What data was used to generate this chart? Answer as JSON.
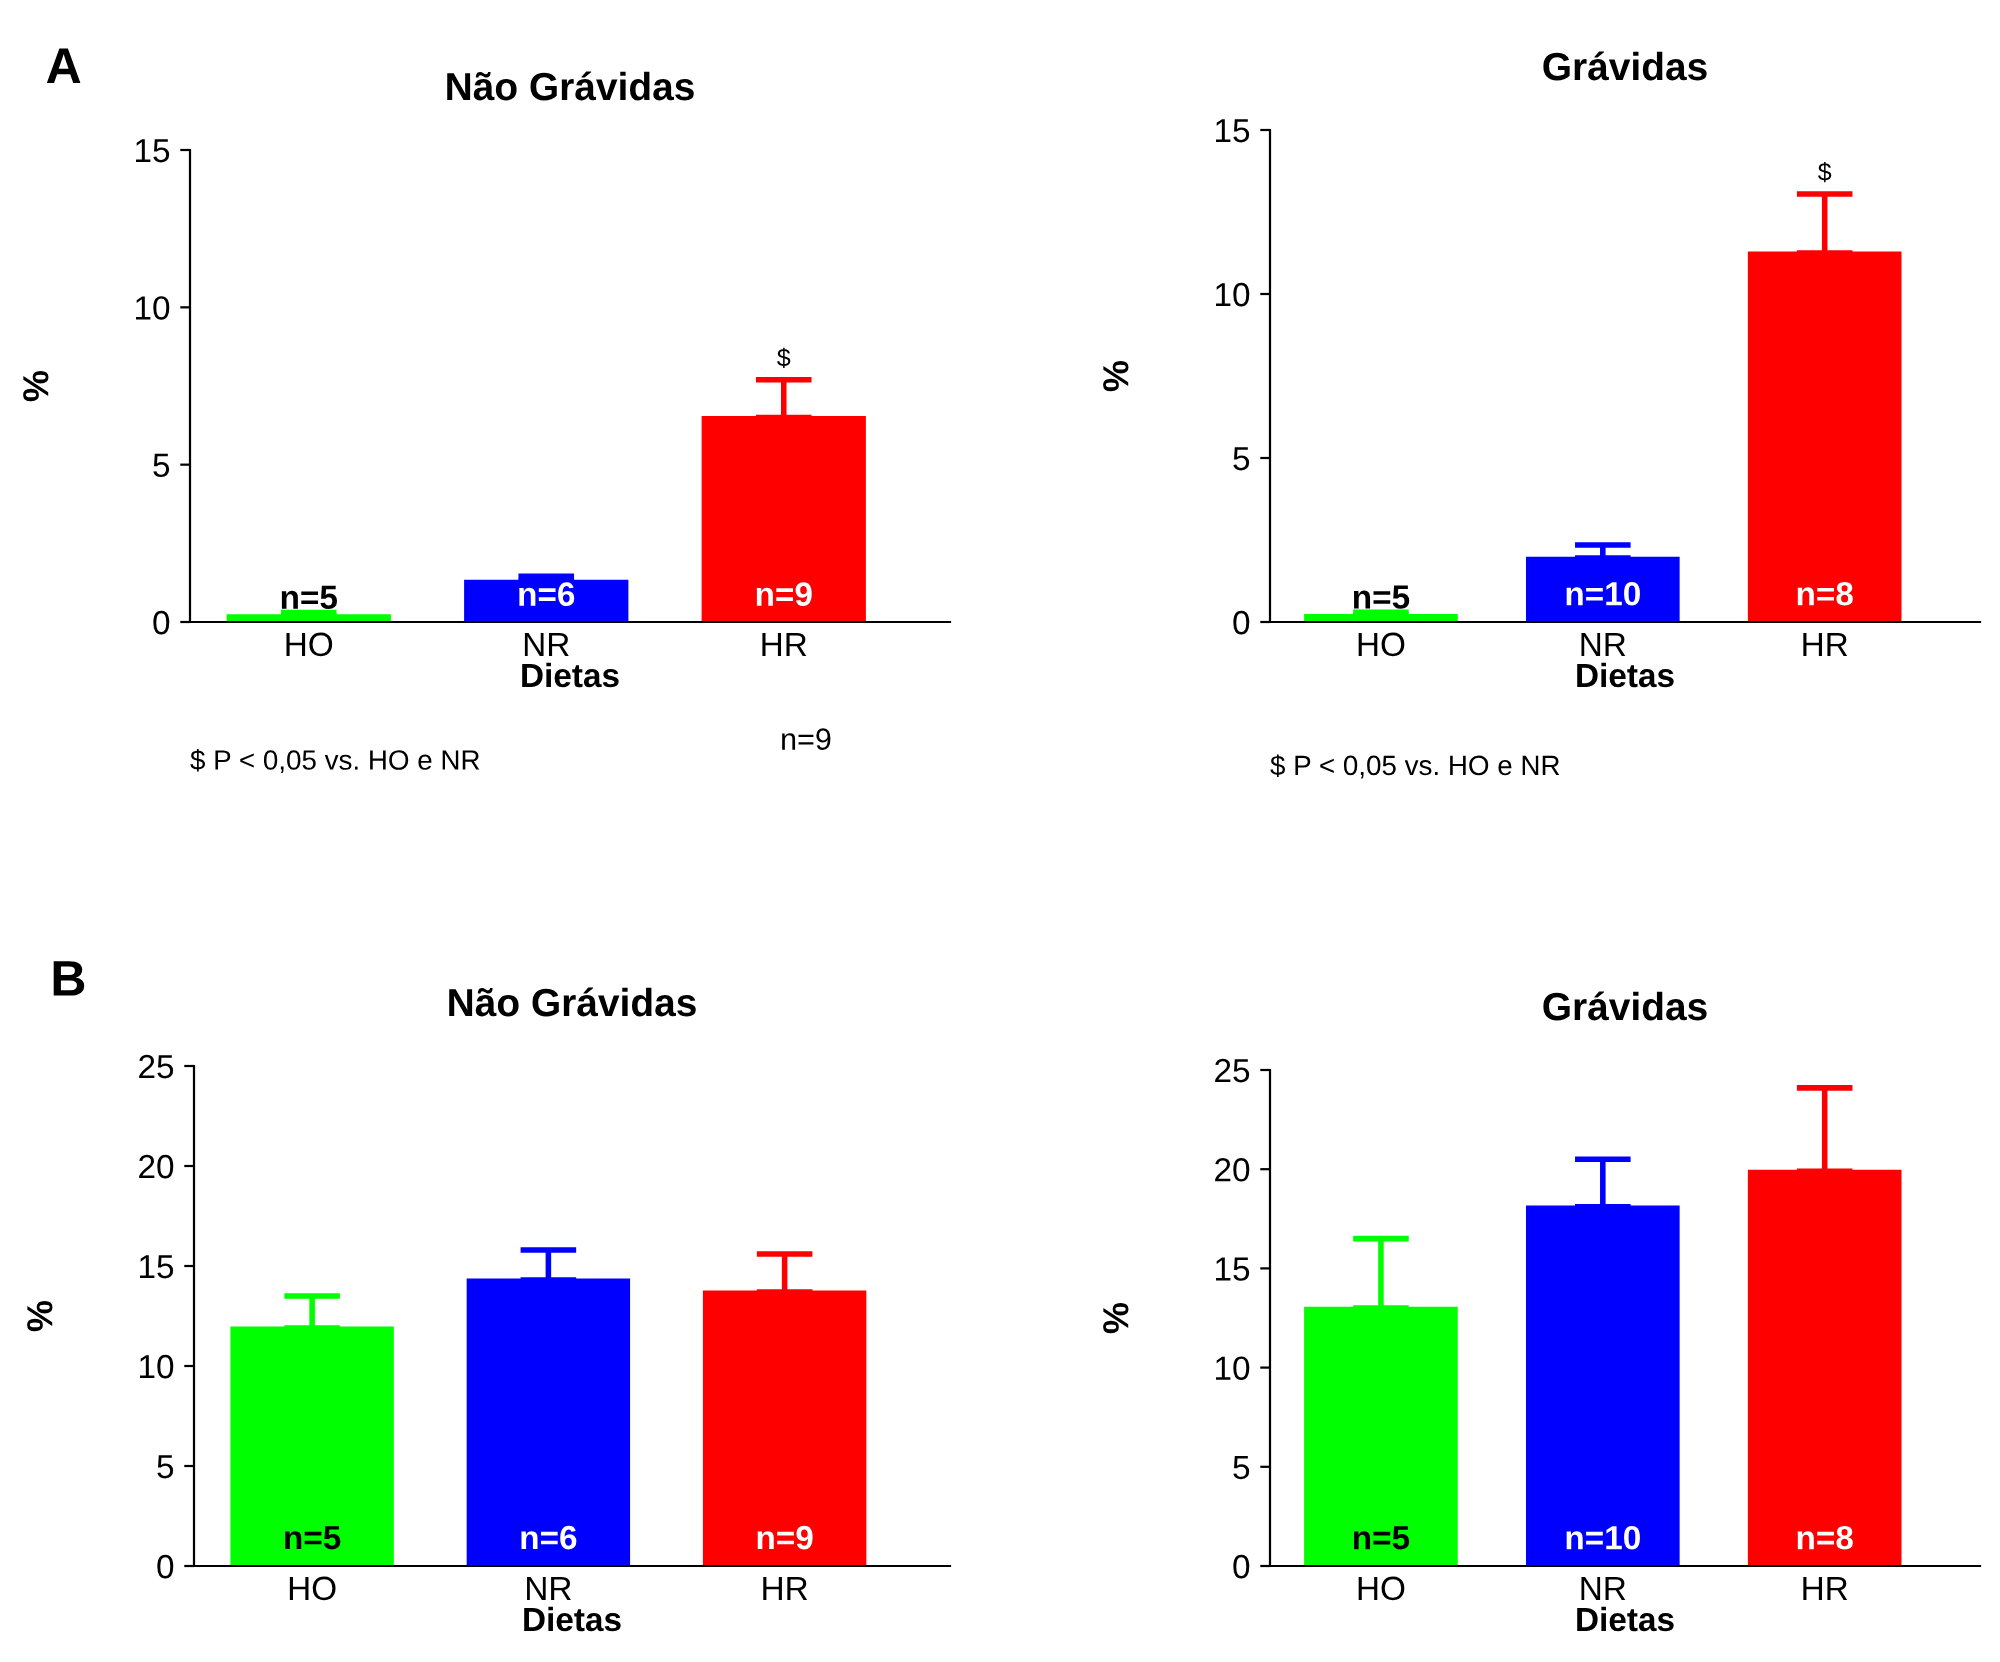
{
  "chart_data": [
    {
      "type": "bar",
      "title": "Não Grávidas",
      "xlabel": "Dietas",
      "ylabel": "%",
      "categories": [
        "HO",
        "NR",
        "HR"
      ],
      "values": [
        0.2,
        1.3,
        6.5
      ],
      "errors": [
        [
          0.2,
          0.3
        ],
        [
          1.3,
          1.45
        ],
        [
          6.5,
          7.7
        ]
      ],
      "colors": [
        "#00ff00",
        "#0000ff",
        "#ff0000"
      ],
      "ylim": [
        0,
        15
      ],
      "yticks": [
        0,
        5,
        10,
        15
      ],
      "grid": false,
      "legend": false,
      "annotations": [
        "A",
        "$ P < 0,05 vs. HO e NR",
        "n=5",
        "n=6",
        "n=9",
        "n=9",
        {
          "text": "$",
          "x": "HR",
          "y": 7.7
        }
      ]
    },
    {
      "type": "bar",
      "title": "Grávidas",
      "xlabel": "Dietas",
      "ylabel": "%",
      "categories": [
        "HO",
        "NR",
        "HR"
      ],
      "values": [
        0.2,
        1.95,
        11.25
      ],
      "errors": [
        [
          0.2,
          0.3
        ],
        [
          1.95,
          2.35
        ],
        [
          11.25,
          13.05
        ]
      ],
      "colors": [
        "#00ff00",
        "#0000ff",
        "#ff0000"
      ],
      "ylim": [
        0,
        15
      ],
      "yticks": [
        0,
        5,
        10,
        15
      ],
      "grid": false,
      "legend": false,
      "annotations": [
        "$ P < 0,05 vs. HO e NR",
        "n=5",
        "n=10",
        "n=8",
        {
          "text": "$",
          "x": "HR",
          "y": 13.05
        }
      ]
    },
    {
      "type": "bar",
      "title": "Não Grávidas",
      "xlabel": "Dietas",
      "ylabel": "%",
      "categories": [
        "HO",
        "NR",
        "HR"
      ],
      "values": [
        11.9,
        14.3,
        13.7
      ],
      "errors": [
        [
          11.9,
          13.5
        ],
        [
          14.3,
          15.8
        ],
        [
          13.7,
          15.6
        ]
      ],
      "colors": [
        "#00ff00",
        "#0000ff",
        "#ff0000"
      ],
      "ylim": [
        0,
        25
      ],
      "yticks": [
        0,
        5,
        10,
        15,
        20,
        25
      ],
      "grid": false,
      "legend": false,
      "annotations": [
        "B",
        "n=5",
        "n=6",
        "n=9"
      ]
    },
    {
      "type": "bar",
      "title": "Grávidas",
      "xlabel": "Dietas",
      "ylabel": "%",
      "categories": [
        "HO",
        "NR",
        "HR"
      ],
      "values": [
        13.0,
        18.1,
        19.9
      ],
      "errors": [
        [
          13.0,
          16.5
        ],
        [
          18.1,
          20.5
        ],
        [
          19.9,
          24.1
        ]
      ],
      "colors": [
        "#00ff00",
        "#0000ff",
        "#ff0000"
      ],
      "ylim": [
        0,
        25
      ],
      "yticks": [
        0,
        5,
        10,
        15,
        20,
        25
      ],
      "grid": false,
      "legend": false,
      "annotations": [
        "n=5",
        "n=10",
        "n=8"
      ]
    }
  ]
}
